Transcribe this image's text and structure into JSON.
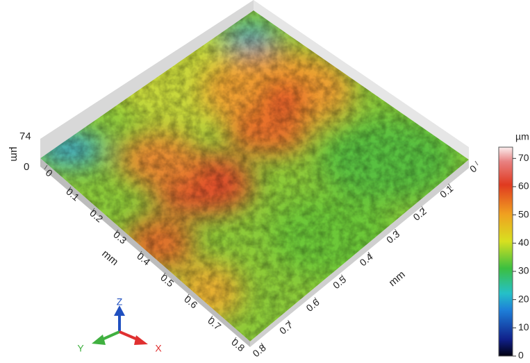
{
  "surface": {
    "z_axis": {
      "max_label": "74",
      "min_label": "0",
      "unit": "µm"
    },
    "left_axis": {
      "label": "mm",
      "ticks": [
        0,
        0.1,
        0.2,
        0.3,
        0.4,
        0.5,
        0.6,
        0.7,
        0.8
      ]
    },
    "right_axis": {
      "label": "mm",
      "ticks": [
        0,
        0.1,
        0.2,
        0.3,
        0.4,
        0.5,
        0.6,
        0.7,
        0.8
      ]
    },
    "colorbar": {
      "unit": "µm",
      "range": [
        0,
        74
      ],
      "ticks": [
        0,
        10,
        20,
        30,
        40,
        50,
        60,
        70
      ]
    },
    "triad": {
      "z": "Z",
      "y": "Y",
      "x": "X"
    }
  }
}
